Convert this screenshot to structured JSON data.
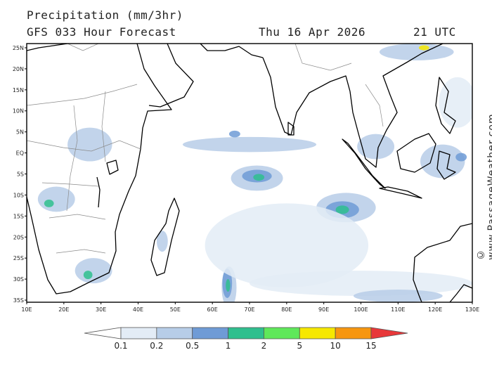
{
  "header": {
    "title": "Precipitation (mm/3hr)",
    "model": "GFS 033 Hour Forecast",
    "date": "Thu 16 Apr 2026",
    "time": "21 UTC"
  },
  "credit": "© www.PassageWeather.com",
  "map": {
    "lon_range": [
      10,
      130
    ],
    "lat_range": [
      -35.5,
      26
    ],
    "lat_labels": [
      "25N",
      "20N",
      "15N",
      "10N",
      "5N",
      "EQ",
      "5S",
      "10S",
      "15S",
      "20S",
      "25S",
      "30S",
      "35S"
    ],
    "lat_values": [
      25,
      20,
      15,
      10,
      5,
      0,
      -5,
      -10,
      -15,
      -20,
      -25,
      -30,
      -35
    ],
    "lon_labels": [
      "10E",
      "20E",
      "30E",
      "40E",
      "50E",
      "60E",
      "70E",
      "80E",
      "90E",
      "100E",
      "110E",
      "120E",
      "130E"
    ],
    "lon_values": [
      10,
      20,
      30,
      40,
      50,
      60,
      70,
      80,
      90,
      100,
      110,
      120,
      130
    ],
    "land_color": "#ffffff",
    "ocean_color": "#ffffff",
    "coast_color": "#000000",
    "border_color": "#8a8a8a"
  },
  "legend": {
    "thresholds": [
      "0.1",
      "0.2",
      "0.5",
      "1",
      "2",
      "5",
      "10",
      "15"
    ],
    "colors": [
      "#ffffff",
      "#e3ecf6",
      "#b7cde8",
      "#6f9bd6",
      "#2fbf8e",
      "#5fe85a",
      "#f6e800",
      "#f7960f",
      "#e8383a"
    ]
  },
  "precip_areas": [
    {
      "level": 2,
      "lon": 64.5,
      "lat": -32.0,
      "rx": 2.0,
      "ry": 5.0
    },
    {
      "level": 3,
      "lon": 64.0,
      "lat": -31.0,
      "rx": 1.3,
      "ry": 3.5
    },
    {
      "level": 4,
      "lon": 64.2,
      "lat": -31.5,
      "rx": 0.6,
      "ry": 1.5
    },
    {
      "level": 2,
      "lon": 72.0,
      "lat": -6.0,
      "rx": 7.0,
      "ry": 3.0
    },
    {
      "level": 3,
      "lon": 72.0,
      "lat": -5.5,
      "rx": 4.0,
      "ry": 1.5
    },
    {
      "level": 4,
      "lon": 72.5,
      "lat": -5.8,
      "rx": 1.5,
      "ry": 0.8
    },
    {
      "level": 2,
      "lon": 96.0,
      "lat": -13.0,
      "rx": 8.0,
      "ry": 3.5
    },
    {
      "level": 3,
      "lon": 95.0,
      "lat": -13.5,
      "rx": 4.5,
      "ry": 2.0
    },
    {
      "level": 4,
      "lon": 95.0,
      "lat": -13.5,
      "rx": 1.8,
      "ry": 1.0
    },
    {
      "level": 2,
      "lon": 18.0,
      "lat": -11.0,
      "rx": 5.0,
      "ry": 3.0
    },
    {
      "level": 4,
      "lon": 16.0,
      "lat": -12.0,
      "rx": 1.3,
      "ry": 0.9
    },
    {
      "level": 2,
      "lon": 28.0,
      "lat": -28.0,
      "rx": 5.0,
      "ry": 3.0
    },
    {
      "level": 4,
      "lon": 26.5,
      "lat": -29.0,
      "rx": 1.2,
      "ry": 1.0
    },
    {
      "level": 2,
      "lon": 70.0,
      "lat": 2.0,
      "rx": 18.0,
      "ry": 1.8
    },
    {
      "level": 3,
      "lon": 66.0,
      "lat": 4.5,
      "rx": 1.5,
      "ry": 0.8
    },
    {
      "level": 2,
      "lon": 27.0,
      "lat": 2.0,
      "rx": 6.0,
      "ry": 4.0
    },
    {
      "level": 2,
      "lon": 122.0,
      "lat": -2.0,
      "rx": 6.0,
      "ry": 4.0
    },
    {
      "level": 3,
      "lon": 127.0,
      "lat": -1.0,
      "rx": 1.5,
      "ry": 1.0
    },
    {
      "level": 2,
      "lon": 115.0,
      "lat": 24.0,
      "rx": 10.0,
      "ry": 2.0
    },
    {
      "level": 6,
      "lon": 117.0,
      "lat": 25.0,
      "rx": 1.4,
      "ry": 0.6
    },
    {
      "level": 1,
      "lon": 80.0,
      "lat": -22.0,
      "rx": 22.0,
      "ry": 10.0
    },
    {
      "level": 1,
      "lon": 100.0,
      "lat": -31.0,
      "rx": 30.0,
      "ry": 3.0
    },
    {
      "level": 2,
      "lon": 110.0,
      "lat": -34.0,
      "rx": 12.0,
      "ry": 1.5
    },
    {
      "level": 1,
      "lon": 126.0,
      "lat": 12.0,
      "rx": 5.0,
      "ry": 6.0
    },
    {
      "level": 2,
      "lon": 46.5,
      "lat": -21.0,
      "rx": 1.5,
      "ry": 2.5
    },
    {
      "level": 2,
      "lon": 104.0,
      "lat": 1.5,
      "rx": 5.0,
      "ry": 3.0
    }
  ]
}
